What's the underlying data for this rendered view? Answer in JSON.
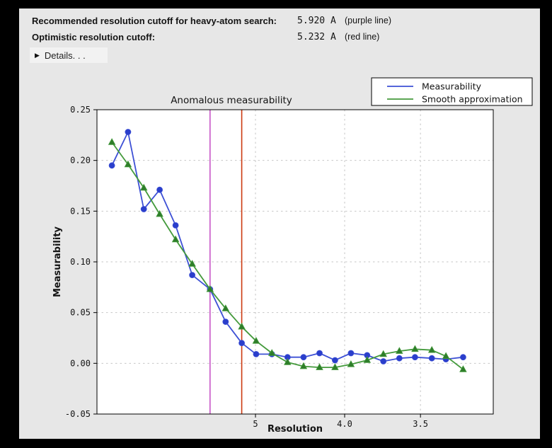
{
  "window": {
    "background": "#e7e7e7",
    "frame_color": "#000000",
    "plot_background": "#ffffff"
  },
  "header": {
    "rows": [
      {
        "label": "Recommended resolution cutoff for heavy-atom search:",
        "value": "5.920 A",
        "note": "(purple line)"
      },
      {
        "label": "Optimistic resolution cutoff:",
        "value": "5.232 A",
        "note": "(red line)"
      }
    ],
    "details": {
      "arrow": "▶",
      "label": "Details. . ."
    }
  },
  "chart_data": {
    "type": "line",
    "title": "Anomalous measurability",
    "xlabel": "Resolution",
    "ylabel": "Measurability",
    "x_axis_scale": "linear in 1/d^2; resolution (Angstrom) decreases left to right",
    "x_axis_range_s": [
      0,
      0.1
    ],
    "ylim": [
      -0.05,
      0.25
    ],
    "grid": true,
    "gridline_color": "#c6c6c6",
    "x_resolution_A": [
      16.3,
      11.3,
      9.2,
      7.95,
      7.1,
      6.45,
      5.92,
      5.55,
      5.232,
      4.99,
      4.76,
      4.56,
      4.38,
      4.22,
      4.08,
      3.95,
      3.83,
      3.72,
      3.62,
      3.53,
      3.44,
      3.37,
      3.29
    ],
    "series": [
      {
        "name": "Measurability",
        "color": "#3d50d5",
        "marker_color": "#2a3ecb",
        "marker": "circle",
        "values": [
          0.195,
          0.228,
          0.152,
          0.171,
          0.136,
          0.087,
          0.073,
          0.041,
          0.02,
          0.009,
          0.009,
          0.006,
          0.006,
          0.01,
          0.003,
          0.01,
          0.008,
          0.002,
          0.005,
          0.006,
          0.005,
          0.004,
          0.006
        ]
      },
      {
        "name": "Smooth approximation",
        "color": "#449a3c",
        "marker_color": "#2e7d2a",
        "marker": "triangle",
        "values": [
          0.218,
          0.196,
          0.173,
          0.147,
          0.122,
          0.098,
          0.073,
          0.054,
          0.036,
          0.022,
          0.01,
          0.001,
          -0.003,
          -0.004,
          -0.004,
          -0.001,
          0.003,
          0.009,
          0.012,
          0.014,
          0.013,
          0.007,
          -0.006
        ]
      }
    ],
    "x_ticks": {
      "values": [
        5,
        4,
        3.5
      ],
      "labels": [
        "5",
        "4.0",
        "3.5"
      ]
    },
    "y_ticks": {
      "values": [
        0.25,
        0.2,
        0.15,
        0.1,
        0.05,
        0.0,
        -0.05
      ],
      "labels": [
        "0.25",
        "0.20",
        "0.15",
        "0.10",
        "0.05",
        "0.00",
        "-0.05"
      ]
    },
    "vlines": [
      {
        "name": "recommended cutoff (purple line)",
        "resolution_A": 5.92,
        "color": "#c855c8"
      },
      {
        "name": "optimistic cutoff (red line)",
        "resolution_A": 5.232,
        "color": "#cc3a10"
      }
    ],
    "legend": {
      "position": "top-right",
      "entries": [
        "Measurability",
        "Smooth approximation"
      ]
    }
  }
}
